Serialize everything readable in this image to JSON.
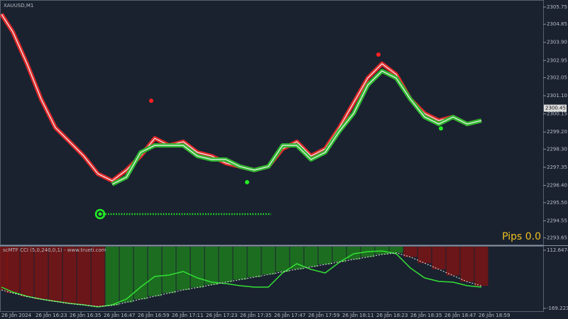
{
  "chart_data": [
    {
      "type": "line",
      "title": "XAUUSD,M1",
      "x": [
        -4,
        0,
        5,
        10,
        15,
        20,
        25,
        30,
        35,
        40,
        45,
        50,
        55,
        60,
        65,
        70,
        75,
        80,
        85,
        90,
        95,
        100,
        105,
        110,
        115,
        120,
        125,
        130,
        135,
        140,
        145,
        150,
        155,
        160,
        165
      ],
      "series": [
        {
          "color": "#e02a2a",
          "values": [
            2305.38,
            2304.45,
            2302.78,
            2300.92,
            2299.43,
            2298.69,
            2297.94,
            2297.01,
            2296.64,
            2297.2,
            2297.94,
            2298.87,
            2298.5,
            2298.69,
            2298.13,
            2297.94,
            2297.57,
            2297.39,
            2297.2,
            2297.39,
            2298.32,
            2298.69,
            2297.94,
            2298.32,
            2299.43,
            2300.73,
            2302.03,
            2302.78,
            2302.22,
            2300.92,
            2300.17,
            2299.8,
            2299.99,
            2299.62,
            2299.8
          ]
        },
        {
          "color": "#2fb82f",
          "values": [
            null,
            null,
            null,
            null,
            null,
            null,
            null,
            null,
            2296.46,
            2296.83,
            2298.13,
            2298.5,
            2298.5,
            2298.5,
            2297.94,
            2297.76,
            2297.76,
            2297.39,
            2297.2,
            2297.39,
            2298.5,
            2298.5,
            2297.76,
            2298.13,
            2299.24,
            2300.17,
            2301.66,
            2302.4,
            2302.03,
            2300.92,
            2299.99,
            2299.62,
            2299.99,
            2299.62,
            2299.8
          ]
        }
      ],
      "markers": [
        {
          "x": 48.75,
          "y": 2300.84,
          "color": "#ff2020"
        },
        {
          "x": 128.75,
          "y": 2303.26,
          "color": "#ff2020"
        },
        {
          "x": 82.5,
          "y": 2296.57,
          "color": "#22ee22"
        },
        {
          "x": 150.75,
          "y": 2299.39,
          "color": "#22ee22"
        }
      ],
      "level": {
        "x": [
          30.75,
          91
        ],
        "y": 2294.9,
        "color": "#22ee22"
      },
      "last_price": 2300.45,
      "annotation": "Pips 0.0",
      "xlim": [
        -4.5,
        186.75
      ],
      "ylim": [
        2293.3,
        2306.12
      ],
      "yticks": [
        2305.75,
        2304.85,
        {
          "value": 2303.9,
          "label": "2303.90"
        },
        2302.95,
        2302.05,
        {
          "value": 2301.1,
          "label": "2301.10"
        },
        2300.15,
        {
          "value": 2299.2,
          "label": "2299.20"
        },
        {
          "value": 2298.3,
          "label": "2298.30"
        },
        2297.35,
        {
          "value": 2296.4,
          "label": "2296.40"
        },
        {
          "value": 2295.5,
          "label": "2295.50"
        },
        2294.55,
        2293.65
      ]
    },
    {
      "type": "line",
      "title": "scMTF CCI (5,0,240,0,1) - www.trueti.com",
      "x": [
        -4,
        0,
        5,
        10,
        15,
        20,
        25,
        30,
        35,
        40,
        45,
        50,
        55,
        60,
        65,
        70,
        75,
        80,
        85,
        90,
        95,
        100,
        105,
        110,
        115,
        120,
        125,
        130,
        135,
        140,
        145,
        150,
        155,
        160,
        165
      ],
      "series": [
        {
          "color": "#33e033",
          "values": [
            -66.2,
            -90.3,
            -110.9,
            -124.7,
            -135.0,
            -145.3,
            -152.2,
            -162.5,
            -152.2,
            -124.7,
            -66.2,
            -14.6,
            -7.8,
            9.4,
            -21.5,
            -42.1,
            -49.0,
            -59.4,
            -66.2,
            -66.2,
            2.6,
            47.3,
            19.8,
            2.6,
            54.2,
            95.4,
            105.8,
            109.2,
            95.4,
            26.7,
            -21.5,
            -38.7,
            -42.1,
            -59.4,
            -66.2
          ]
        },
        {
          "color": "#e8e8e8",
          "values": [
            -80,
            -95,
            -112,
            -125,
            -136,
            -146,
            -153,
            -160,
            -155,
            -140,
            -125,
            -110,
            -95,
            -80,
            -68,
            -55,
            -42,
            -30,
            -18,
            -5,
            8,
            20,
            32,
            44,
            56,
            68,
            80,
            92,
            100,
            80,
            50,
            20,
            -10,
            -40,
            -60
          ]
        }
      ],
      "hist_colors": [
        "#7a1414",
        "#1e7a1e"
      ],
      "xlim": [
        -4.5,
        186.75
      ],
      "ylim": [
        -186.4,
        129.8
      ],
      "yticks": [
        112.64746,
        {
          "value": -169.2239,
          "label": "-169.22390"
        }
      ],
      "xticks": [
        {
          "value": 0,
          "label": "26 Jun 2024"
        },
        {
          "value": 12,
          "label": "26 Jun 16:23"
        },
        {
          "value": 24,
          "label": "26 Jun 16:35"
        },
        {
          "value": 36,
          "label": "26 Jun 16:47"
        },
        {
          "value": 48,
          "label": "26 Jun 16:59"
        },
        {
          "value": 60,
          "label": "26 Jun 17:11"
        },
        {
          "value": 72,
          "label": "26 Jun 17:23"
        },
        {
          "value": 84,
          "label": "26 Jun 17:35"
        },
        {
          "value": 96,
          "label": "26 Jun 17:47"
        },
        {
          "value": 108,
          "label": "26 Jun 17:59"
        },
        {
          "value": 120,
          "label": "26 Jun 18:11"
        },
        {
          "value": 132,
          "label": "26 Jun 18:23"
        },
        {
          "value": 144,
          "label": "26 Jun 18:35"
        },
        {
          "value": 156,
          "label": "26 Jun 18:47"
        },
        {
          "value": 168,
          "label": "26 Jun 18:59"
        }
      ]
    }
  ]
}
